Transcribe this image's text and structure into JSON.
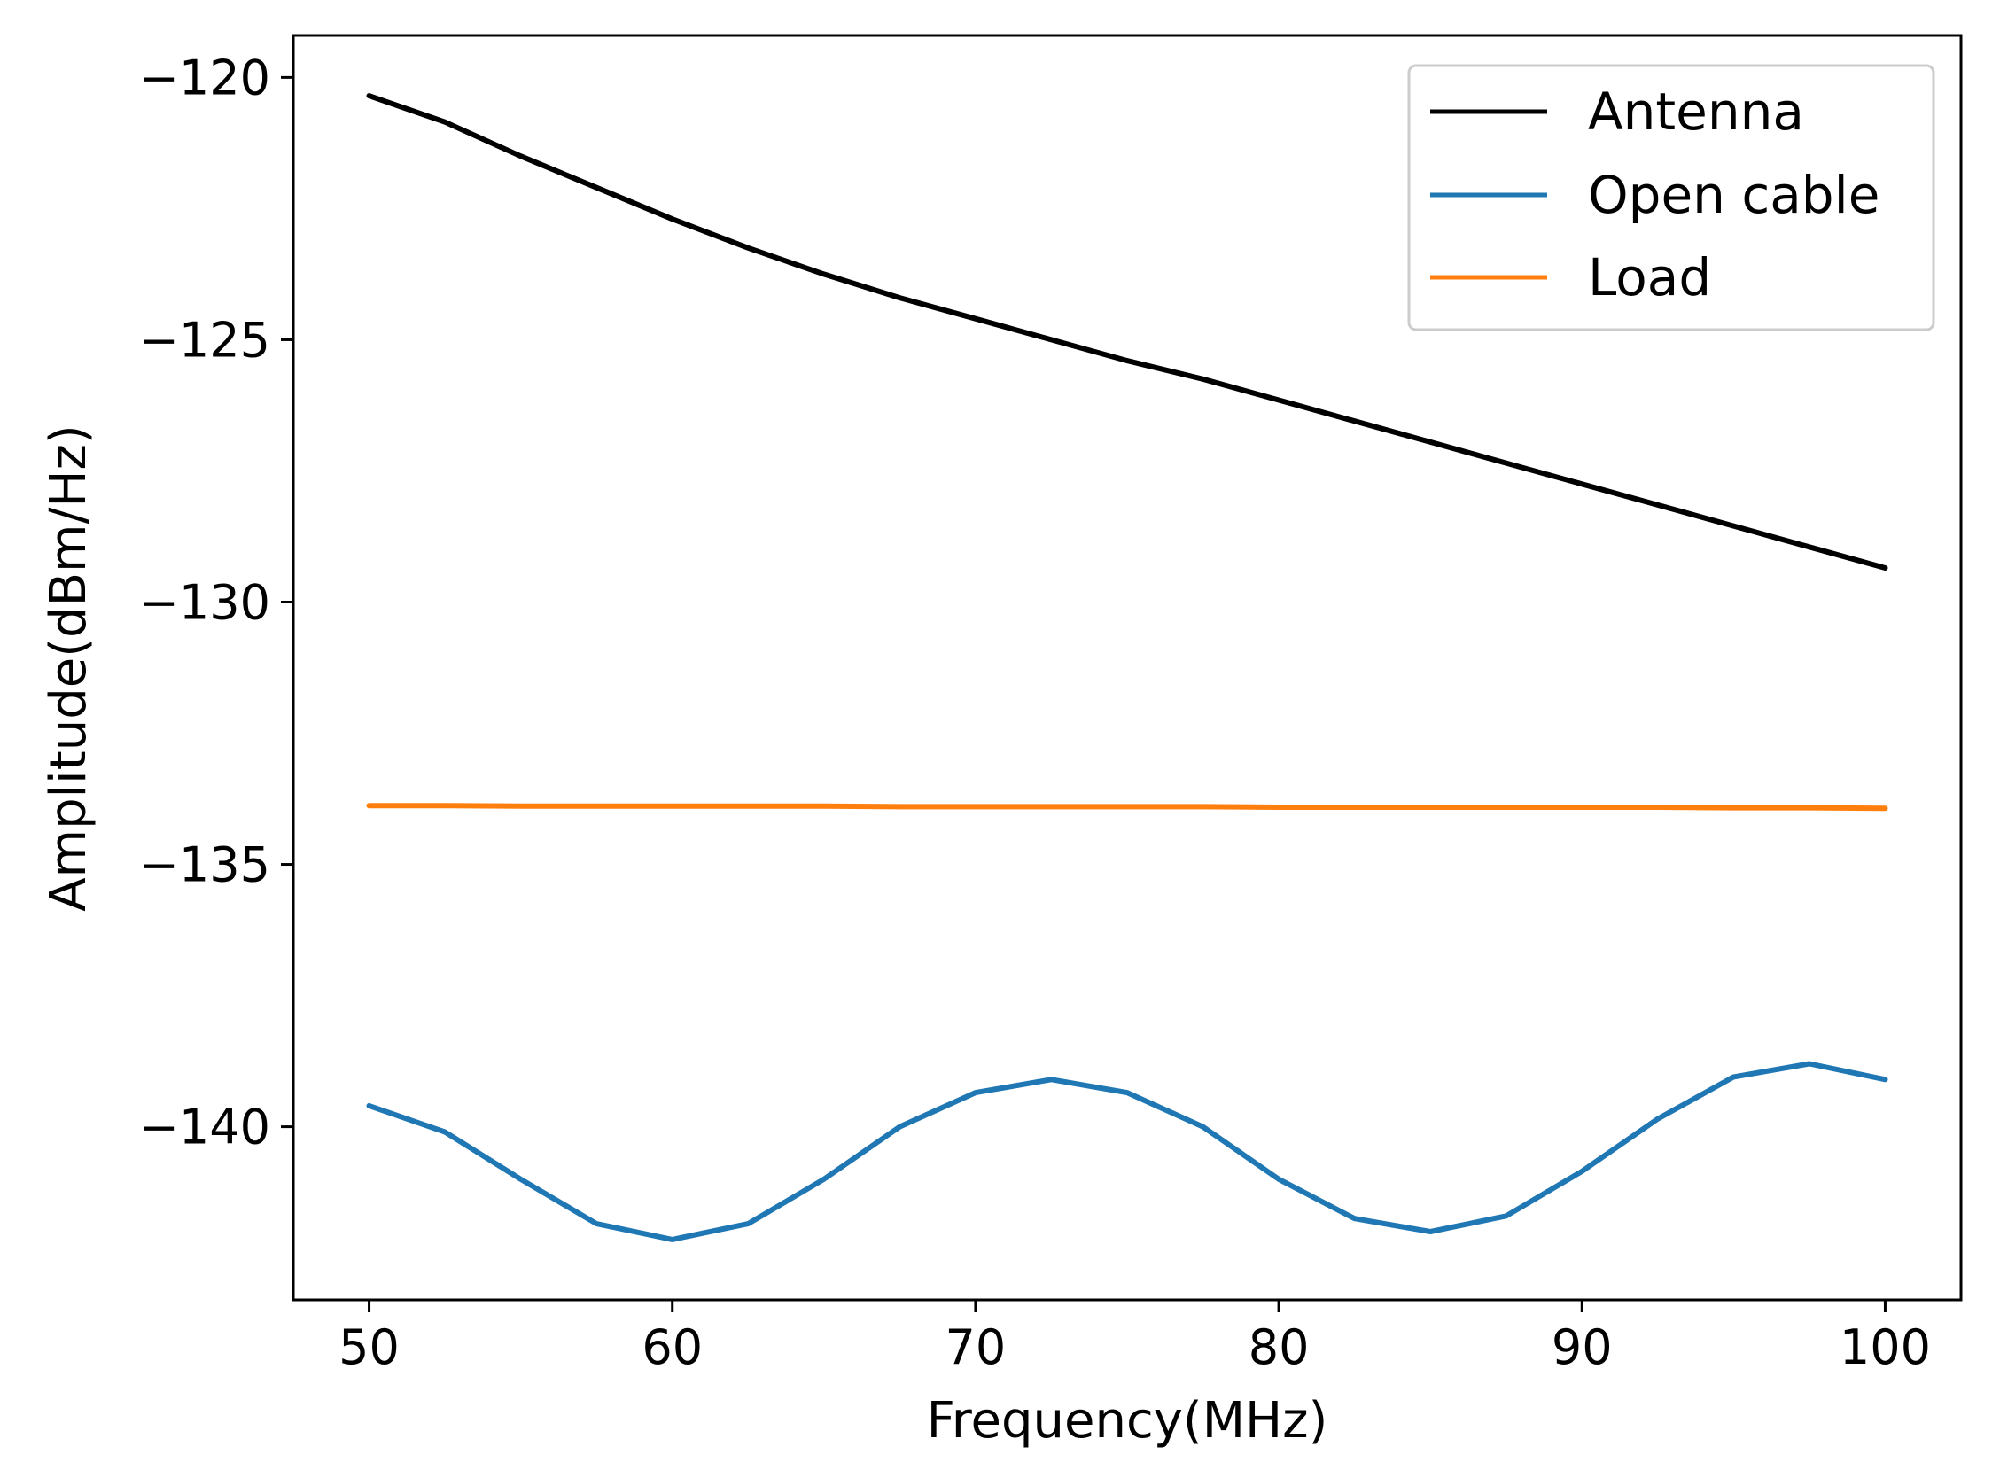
{
  "chart_data": {
    "type": "line",
    "title": "",
    "xlabel": "Frequency(MHz)",
    "ylabel": "Amplitude(dBm/Hz)",
    "xlim": [
      47.5,
      102.5
    ],
    "ylim": [
      -143.3,
      -119.2
    ],
    "xticks": [
      50,
      60,
      70,
      80,
      90,
      100
    ],
    "xtick_labels": [
      "50",
      "60",
      "70",
      "80",
      "90",
      "100"
    ],
    "yticks": [
      -120,
      -125,
      -130,
      -135,
      -140
    ],
    "ytick_labels": [
      "−120",
      "−125",
      "−130",
      "−135",
      "−140"
    ],
    "legend_position": "top-right",
    "series": [
      {
        "name": "Antenna",
        "color": "#000000",
        "x": [
          50,
          52.5,
          55,
          57.5,
          60,
          62.5,
          65,
          67.5,
          70,
          72.5,
          75,
          77.5,
          80,
          82.5,
          85,
          87.5,
          90,
          92.5,
          95,
          97.5,
          100
        ],
        "y": [
          -120.35,
          -120.85,
          -121.5,
          -122.1,
          -122.7,
          -123.25,
          -123.75,
          -124.2,
          -124.6,
          -125.0,
          -125.4,
          -125.75,
          -126.15,
          -126.55,
          -126.95,
          -127.35,
          -127.75,
          -128.15,
          -128.55,
          -128.95,
          -129.35
        ]
      },
      {
        "name": "Open cable",
        "color": "#1f77b4",
        "x": [
          50,
          52.5,
          55,
          57.5,
          60,
          62.5,
          65,
          67.5,
          70,
          72.5,
          75,
          77.5,
          80,
          82.5,
          85,
          87.5,
          90,
          92.5,
          95,
          97.5,
          100
        ],
        "y": [
          -139.6,
          -140.1,
          -141.0,
          -141.85,
          -142.15,
          -141.85,
          -141.0,
          -140.0,
          -139.35,
          -139.1,
          -139.35,
          -140.0,
          -141.0,
          -141.75,
          -142.0,
          -141.7,
          -140.85,
          -139.85,
          -139.05,
          -138.8,
          -139.1
        ]
      },
      {
        "name": "Load",
        "color": "#ff7f0e",
        "x": [
          50,
          52.5,
          55,
          57.5,
          60,
          62.5,
          65,
          67.5,
          70,
          72.5,
          75,
          77.5,
          80,
          82.5,
          85,
          87.5,
          90,
          92.5,
          95,
          97.5,
          100
        ],
        "y": [
          -133.88,
          -133.88,
          -133.89,
          -133.89,
          -133.89,
          -133.89,
          -133.89,
          -133.9,
          -133.9,
          -133.9,
          -133.9,
          -133.9,
          -133.91,
          -133.91,
          -133.91,
          -133.91,
          -133.91,
          -133.91,
          -133.92,
          -133.92,
          -133.93
        ]
      }
    ]
  }
}
